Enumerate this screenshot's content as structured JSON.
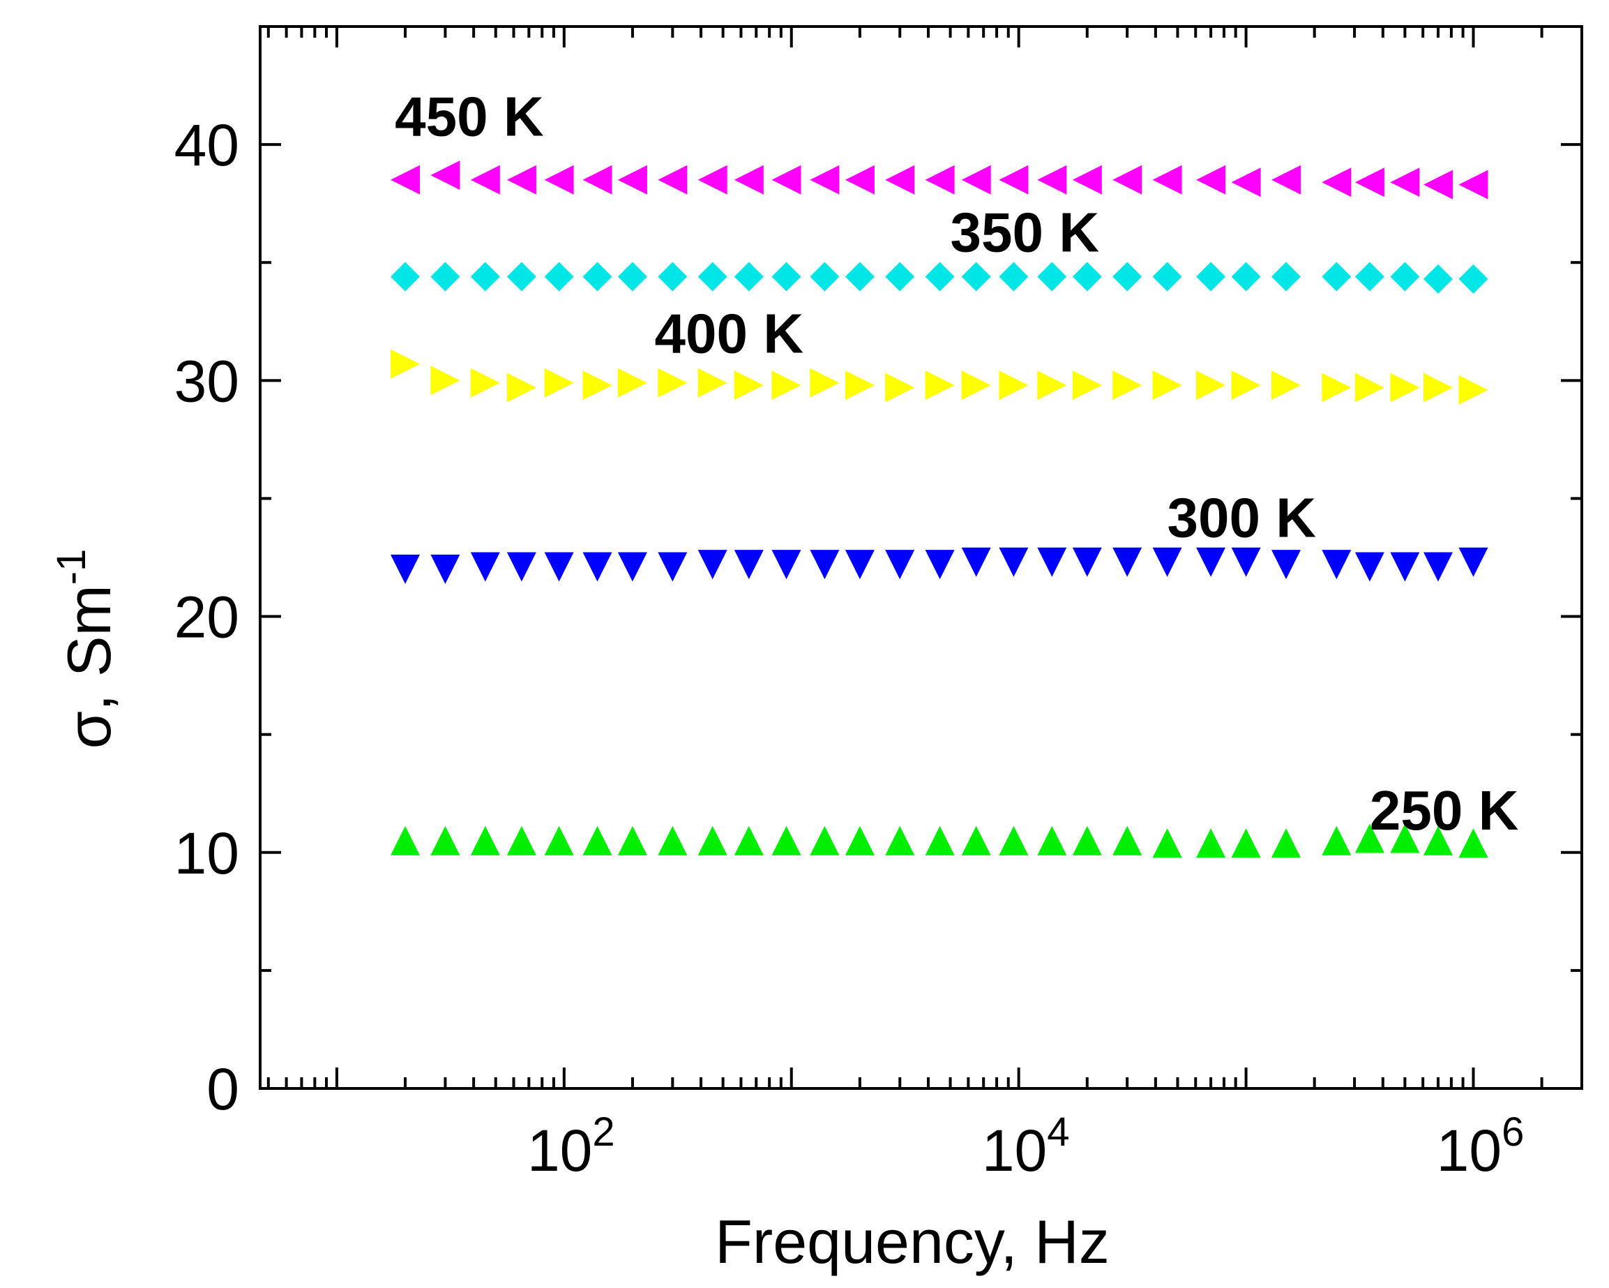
{
  "chart_data": {
    "type": "scatter",
    "title": "",
    "xlabel": "Frequency, Hz",
    "ylabel": "σ, Sm",
    "ylabel_superscript": "-1",
    "xscale": "log",
    "xlim": [
      4.6,
      3000000
    ],
    "ylim": [
      0,
      45
    ],
    "x_ticks": [
      {
        "base": "10",
        "exp": "2",
        "value": 100
      },
      {
        "base": "10",
        "exp": "4",
        "value": 10000
      },
      {
        "base": "10",
        "exp": "6",
        "value": 1000000
      }
    ],
    "y_ticks": [
      {
        "label": "0",
        "value": 0
      },
      {
        "label": "10",
        "value": 10
      },
      {
        "label": "20",
        "value": 20
      },
      {
        "label": "30",
        "value": 30
      },
      {
        "label": "40",
        "value": 40
      }
    ],
    "x": [
      20,
      30,
      45,
      65,
      95,
      140,
      200,
      300,
      450,
      650,
      950,
      1400,
      2000,
      3000,
      4500,
      6500,
      9500,
      14000,
      20000,
      30000,
      45000,
      70000,
      100000,
      150000,
      250000,
      350000,
      500000,
      700000,
      1000000
    ],
    "series": [
      {
        "name": "450 K",
        "label": "450 K",
        "marker": "triangle-left",
        "color": "#ff00ff",
        "values": [
          38.5,
          38.7,
          38.5,
          38.5,
          38.5,
          38.5,
          38.5,
          38.5,
          38.5,
          38.5,
          38.5,
          38.5,
          38.5,
          38.5,
          38.5,
          38.5,
          38.5,
          38.5,
          38.5,
          38.5,
          38.5,
          38.5,
          38.4,
          38.5,
          38.4,
          38.4,
          38.4,
          38.3,
          38.3
        ]
      },
      {
        "name": "350 K",
        "label": "350 K",
        "marker": "diamond",
        "color": "#00e5e5",
        "values": [
          34.4,
          34.4,
          34.4,
          34.4,
          34.4,
          34.4,
          34.4,
          34.4,
          34.4,
          34.4,
          34.4,
          34.4,
          34.4,
          34.4,
          34.4,
          34.4,
          34.4,
          34.4,
          34.4,
          34.4,
          34.4,
          34.4,
          34.4,
          34.4,
          34.4,
          34.4,
          34.4,
          34.3,
          34.3
        ]
      },
      {
        "name": "400 K",
        "label": "400 K",
        "marker": "triangle-right",
        "color": "#ffff00",
        "values": [
          30.7,
          30.0,
          29.9,
          29.7,
          29.9,
          29.8,
          29.9,
          29.9,
          29.9,
          29.8,
          29.8,
          29.9,
          29.8,
          29.7,
          29.8,
          29.8,
          29.8,
          29.8,
          29.8,
          29.8,
          29.8,
          29.8,
          29.8,
          29.8,
          29.7,
          29.7,
          29.7,
          29.7,
          29.6
        ]
      },
      {
        "name": "300 K",
        "label": "300 K",
        "marker": "triangle-down",
        "color": "#0000ff",
        "values": [
          22.0,
          22.0,
          22.1,
          22.1,
          22.1,
          22.1,
          22.1,
          22.1,
          22.2,
          22.2,
          22.2,
          22.2,
          22.2,
          22.2,
          22.2,
          22.3,
          22.3,
          22.3,
          22.3,
          22.3,
          22.3,
          22.3,
          22.3,
          22.2,
          22.2,
          22.1,
          22.1,
          22.1,
          22.3
        ]
      },
      {
        "name": "250 K",
        "label": "250 K",
        "marker": "triangle-up",
        "color": "#00ee00",
        "values": [
          10.5,
          10.5,
          10.5,
          10.5,
          10.5,
          10.5,
          10.5,
          10.5,
          10.5,
          10.5,
          10.5,
          10.5,
          10.5,
          10.5,
          10.5,
          10.5,
          10.5,
          10.5,
          10.5,
          10.5,
          10.4,
          10.4,
          10.4,
          10.4,
          10.5,
          10.6,
          10.6,
          10.5,
          10.4
        ]
      }
    ],
    "annotations": [
      {
        "text": "450 K",
        "x": 18,
        "y": 41.2
      },
      {
        "text": "350 K",
        "x": 5000,
        "y": 36.3
      },
      {
        "text": "400 K",
        "x": 250,
        "y": 32.0
      },
      {
        "text": "300 K",
        "x": 45000,
        "y": 24.2
      },
      {
        "text": "250 K",
        "x": 350000,
        "y": 11.8
      }
    ],
    "grid": false,
    "legend": "none"
  }
}
